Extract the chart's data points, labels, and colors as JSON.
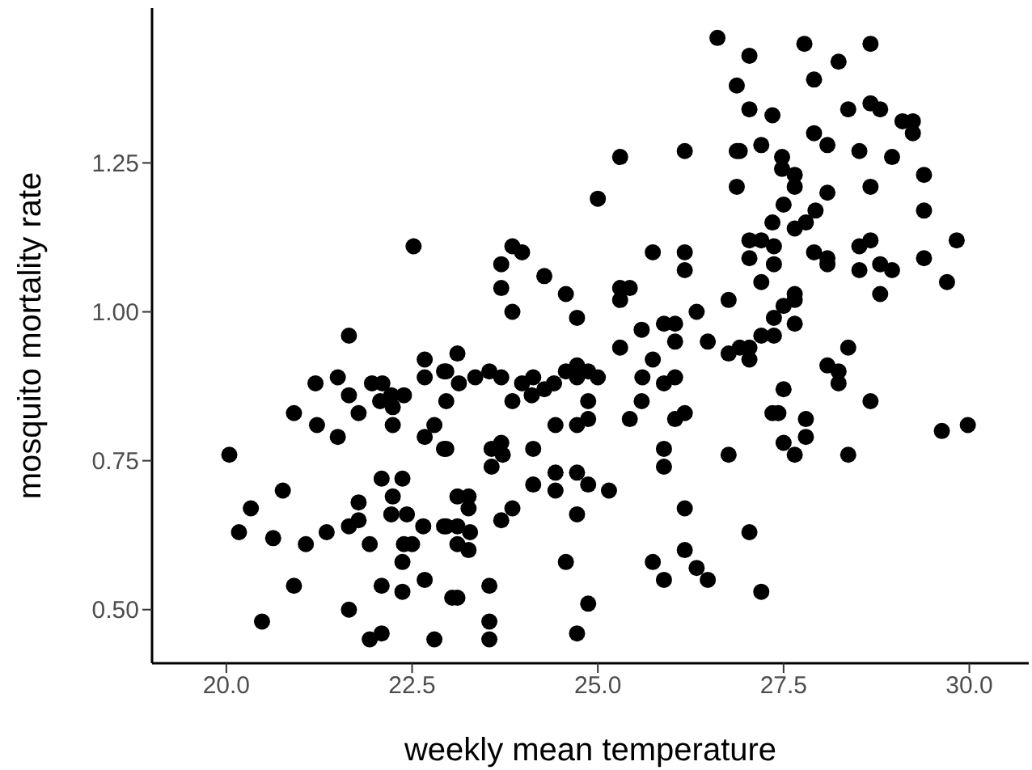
{
  "chart_data": {
    "type": "scatter",
    "xlabel": "weekly mean temperature",
    "ylabel": "mosquito mortality rate",
    "xlim": [
      19.0,
      30.8
    ],
    "ylim": [
      0.41,
      1.51
    ],
    "xticks": [
      {
        "value": 20,
        "label": "20.0"
      },
      {
        "value": 22.5,
        "label": "22.5"
      },
      {
        "value": 25,
        "label": "25.0"
      },
      {
        "value": 27.5,
        "label": "27.5"
      },
      {
        "value": 30,
        "label": "30.0"
      }
    ],
    "yticks": [
      {
        "value": 0.5,
        "label": "0.50"
      },
      {
        "value": 0.75,
        "label": "0.75"
      },
      {
        "value": 1,
        "label": "1.00"
      },
      {
        "value": 1.25,
        "label": "1.25"
      }
    ],
    "marker": "circle",
    "series": [
      {
        "color": "#000000",
        "x": [
          21.65,
          22.67,
          22.67,
          22.93,
          21.2,
          21.5,
          21.65,
          21.96,
          22.1,
          22.22,
          22.39,
          22.07,
          22.24,
          22.96,
          20.91,
          21.78,
          21.22,
          22.24,
          22.8,
          21.5,
          22.67,
          22.93,
          20.04,
          22.09,
          22.37,
          20.76,
          22.24,
          21.78,
          20.33,
          22.22,
          22.43,
          22.65,
          22.93,
          21.65,
          21.78,
          20.17,
          20.63,
          21.07,
          21.35,
          21.93,
          22.39,
          22.37,
          22.5,
          20.91,
          22.09,
          22.37,
          22.67,
          20.48,
          21.65,
          21.93,
          22.09,
          22.8,
          23.04,
          25.59,
          25.3,
          26.04,
          26.48,
          26.76,
          25.74,
          25.6,
          26.04,
          25.89,
          23.11,
          22.96,
          23.13,
          23.35,
          23.54,
          23.7,
          23.98,
          24.13,
          24.41,
          24.57,
          24.72,
          24.72,
          24.87,
          25.0,
          24.28,
          24.11,
          23.85,
          24.87,
          25.59,
          24.87,
          24.72,
          24.43,
          25.43,
          26.04,
          26.17,
          22.96,
          23.7,
          23.57,
          23.57,
          23.72,
          24.13,
          24.43,
          24.72,
          24.87,
          25.15,
          24.13,
          24.43,
          25.89,
          25.89,
          26.76,
          23.11,
          23.26,
          23.26,
          23.85,
          23.7,
          22.96,
          23.11,
          23.28,
          23.11,
          23.26,
          24.72,
          26.17,
          24.57,
          25.74,
          25.89,
          26.17,
          26.33,
          26.48,
          23.11,
          23.54,
          24.87,
          23.54,
          23.54,
          24.72,
          26.61,
          26.87,
          25.3,
          26.17,
          26.87,
          26.87,
          25.0,
          23.85,
          23.98,
          23.7,
          25.74,
          26.17,
          26.17,
          23.7,
          24.28,
          24.57,
          23.85,
          24.72,
          25.3,
          25.43,
          25.3,
          25.89,
          26.04,
          26.33,
          26.76,
          22.52,
          27.04,
          27.78,
          28.67,
          28.24,
          27.91,
          27.04,
          27.35,
          28.37,
          28.67,
          28.8,
          29.1,
          29.24,
          29.24,
          27.91,
          28.09,
          28.52,
          28.96,
          26.91,
          27.2,
          27.48,
          27.48,
          27.65,
          29.39,
          27.65,
          28.67,
          28.09,
          27.5,
          27.93,
          27.35,
          27.8,
          27.65,
          29.39,
          27.04,
          27.2,
          27.37,
          28.67,
          28.52,
          29.83,
          27.04,
          27.37,
          27.91,
          28.09,
          28.09,
          28.52,
          28.8,
          28.96,
          29.39,
          27.2,
          29.7,
          28.8,
          27.65,
          27.5,
          27.65,
          27.37,
          27.65,
          27.2,
          27.37,
          26.91,
          27.04,
          27.04,
          28.37,
          28.09,
          28.24,
          28.24,
          28.67,
          27.5,
          27.35,
          27.43,
          27.8,
          27.8,
          27.5,
          27.65,
          28.37,
          29.63,
          29.98,
          27.04,
          27.2
        ],
        "values": [
          0.96,
          0.92,
          0.89,
          0.9,
          0.88,
          0.89,
          0.86,
          0.88,
          0.88,
          0.86,
          0.86,
          0.85,
          0.84,
          0.85,
          0.83,
          0.83,
          0.81,
          0.81,
          0.81,
          0.79,
          0.79,
          0.77,
          0.76,
          0.72,
          0.72,
          0.7,
          0.69,
          0.68,
          0.67,
          0.66,
          0.66,
          0.64,
          0.64,
          0.64,
          0.65,
          0.63,
          0.62,
          0.61,
          0.63,
          0.61,
          0.61,
          0.58,
          0.61,
          0.54,
          0.54,
          0.53,
          0.55,
          0.48,
          0.5,
          0.45,
          0.46,
          0.45,
          0.52,
          0.97,
          0.94,
          0.95,
          0.95,
          0.93,
          0.92,
          0.89,
          0.89,
          0.88,
          0.93,
          0.9,
          0.88,
          0.89,
          0.9,
          0.89,
          0.88,
          0.89,
          0.88,
          0.9,
          0.91,
          0.89,
          0.9,
          0.89,
          0.87,
          0.86,
          0.85,
          0.85,
          0.85,
          0.82,
          0.81,
          0.81,
          0.82,
          0.82,
          0.83,
          0.77,
          0.78,
          0.77,
          0.74,
          0.76,
          0.77,
          0.73,
          0.73,
          0.71,
          0.7,
          0.71,
          0.7,
          0.77,
          0.74,
          0.76,
          0.69,
          0.69,
          0.67,
          0.67,
          0.65,
          0.64,
          0.64,
          0.63,
          0.61,
          0.6,
          0.66,
          0.67,
          0.58,
          0.58,
          0.55,
          0.6,
          0.57,
          0.55,
          0.52,
          0.54,
          0.51,
          0.48,
          0.45,
          0.46,
          1.46,
          1.38,
          1.26,
          1.27,
          1.27,
          1.21,
          1.19,
          1.11,
          1.1,
          1.08,
          1.1,
          1.1,
          1.07,
          1.04,
          1.06,
          1.03,
          1.0,
          0.99,
          1.04,
          1.04,
          1.02,
          0.98,
          0.98,
          1.0,
          1.02,
          1.11,
          1.43,
          1.45,
          1.45,
          1.42,
          1.39,
          1.34,
          1.33,
          1.34,
          1.35,
          1.34,
          1.32,
          1.32,
          1.3,
          1.3,
          1.28,
          1.27,
          1.26,
          1.27,
          1.28,
          1.26,
          1.24,
          1.23,
          1.23,
          1.21,
          1.21,
          1.2,
          1.18,
          1.17,
          1.15,
          1.15,
          1.14,
          1.17,
          1.12,
          1.12,
          1.11,
          1.12,
          1.11,
          1.12,
          1.09,
          1.08,
          1.1,
          1.09,
          1.08,
          1.07,
          1.08,
          1.07,
          1.09,
          1.05,
          1.05,
          1.03,
          1.03,
          1.01,
          1.02,
          0.99,
          0.98,
          0.96,
          0.96,
          0.94,
          0.94,
          0.92,
          0.94,
          0.91,
          0.9,
          0.88,
          0.85,
          0.87,
          0.83,
          0.83,
          0.82,
          0.79,
          0.78,
          0.76,
          0.76,
          0.8,
          0.81,
          0.63,
          0.53
        ]
      }
    ]
  }
}
